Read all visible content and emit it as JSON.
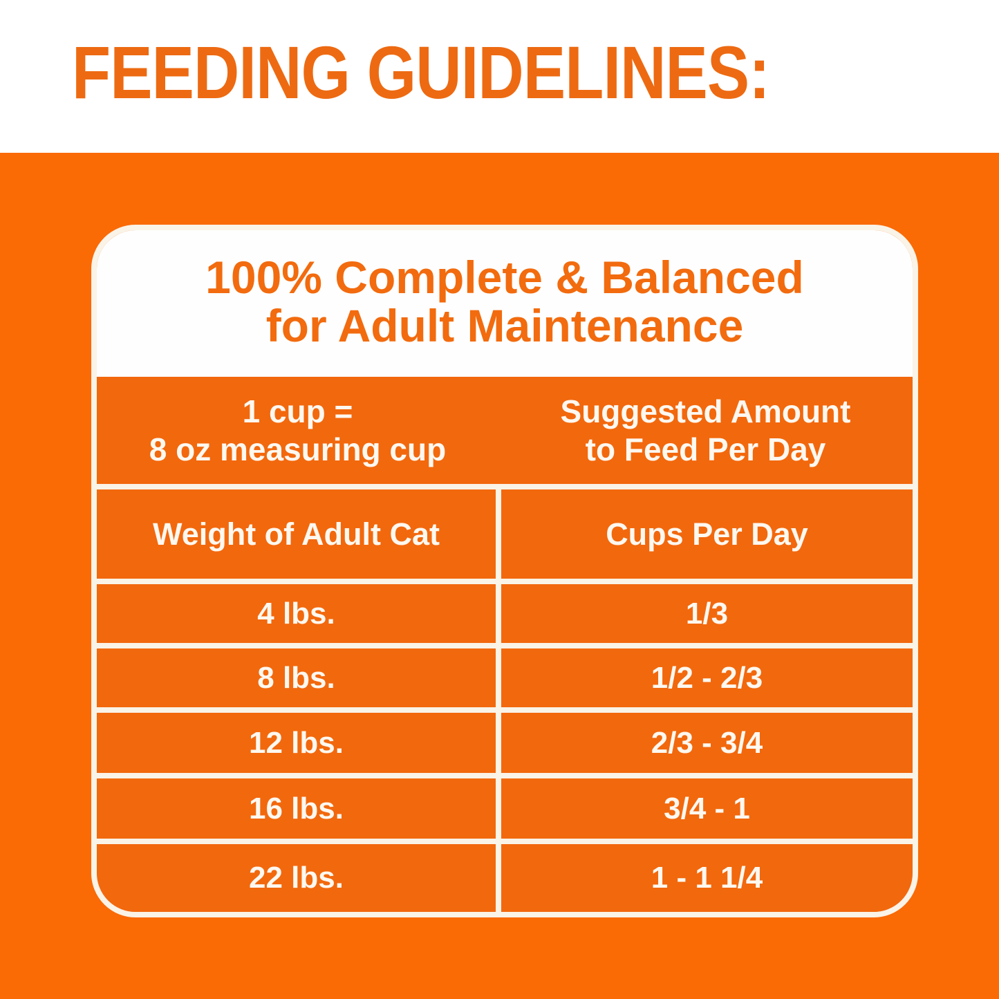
{
  "page": {
    "title": "FEEDING GUIDELINES:"
  },
  "card": {
    "heading": {
      "line1": "100% Complete & Balanced",
      "line2": "for Adult Maintenance"
    },
    "measure_header": {
      "line1": "1 cup =",
      "line2": "8 oz measuring cup"
    },
    "amount_header": {
      "line1": "Suggested Amount",
      "line2": "to Feed Per Day"
    },
    "table": {
      "column_headers": {
        "weight": "Weight of Adult Cat",
        "cups": "Cups Per Day"
      },
      "rows": [
        {
          "weight": "4 lbs.",
          "cups": "1/3"
        },
        {
          "weight": "8 lbs.",
          "cups": "1/2 - 2/3"
        },
        {
          "weight": "12 lbs.",
          "cups": "2/3 - 3/4"
        },
        {
          "weight": "16 lbs.",
          "cups": "3/4 - 1"
        },
        {
          "weight": "22 lbs.",
          "cups": "1 - 1 1/4"
        }
      ]
    }
  },
  "colors": {
    "orange_background": "#FA6A05",
    "table_orange": "#F2680D",
    "accent_orange_text": "#ED6A12",
    "cream_lines": "#FAF3E7",
    "text_white": "#FDF8F0"
  }
}
